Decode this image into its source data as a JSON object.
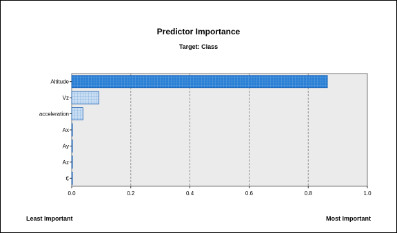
{
  "chart_data": {
    "type": "bar",
    "orientation": "horizontal",
    "title": "Predictor Importance",
    "subtitle": "Target: Class",
    "categories": [
      "Altitude",
      "Vz",
      "acceleration",
      "Ax",
      "Ay",
      "Az",
      "€"
    ],
    "values": [
      0.865,
      0.092,
      0.038,
      0.002,
      0.002,
      0.002,
      0.002
    ],
    "xlim": [
      0.0,
      1.0
    ],
    "xticks": [
      "0.0",
      "0.2",
      "0.4",
      "0.6",
      "0.8",
      "1.0"
    ],
    "xtick_values": [
      0.0,
      0.2,
      0.4,
      0.6,
      0.8,
      1.0
    ],
    "grid": "vertical dashed",
    "legend": "none",
    "footer_left": "Least Important",
    "footer_right": "Most Important",
    "colors": {
      "plot_background": "#ebebeb",
      "bar_strong": "#2a7fd4",
      "bar_light": "#b8d4f0",
      "bar_border": "#1a5fb0"
    }
  }
}
